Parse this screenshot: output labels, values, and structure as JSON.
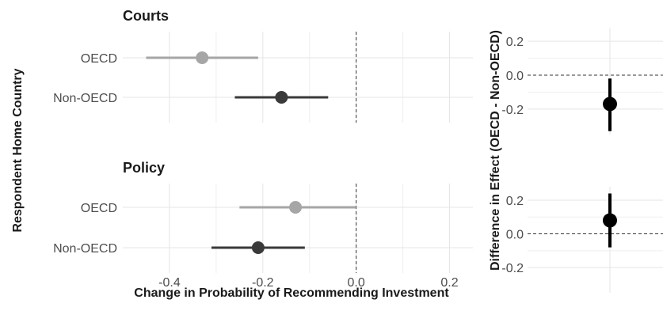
{
  "colors": {
    "oecd": "#a6a6a6",
    "non_oecd": "#3a3a3a",
    "difference": "#000000"
  },
  "chart_data": [
    {
      "type": "scatter",
      "subtype": "point-range",
      "title": "Courts",
      "ylabel": "Respondent Home Country",
      "xlabel": "Change in Probability of Recommending Investment",
      "categories": [
        "OECD",
        "Non-OECD"
      ],
      "series": [
        {
          "category": "OECD",
          "estimate": -0.33,
          "lower": -0.45,
          "upper": -0.21
        },
        {
          "category": "Non-OECD",
          "estimate": -0.16,
          "lower": -0.26,
          "upper": -0.06
        }
      ],
      "xticks": [
        "-0.4",
        "-0.2",
        "0.0",
        "0.2"
      ],
      "xlim": [
        -0.5,
        0.25
      ],
      "reference_line_x": 0,
      "grid": true
    },
    {
      "type": "scatter",
      "subtype": "point-range",
      "title": "Policy",
      "ylabel": "Respondent Home Country",
      "xlabel": "Change in Probability of Recommending Investment",
      "categories": [
        "OECD",
        "Non-OECD"
      ],
      "series": [
        {
          "category": "OECD",
          "estimate": -0.13,
          "lower": -0.25,
          "upper": 0.0
        },
        {
          "category": "Non-OECD",
          "estimate": -0.21,
          "lower": -0.31,
          "upper": -0.11
        }
      ],
      "xticks": [
        "-0.4",
        "-0.2",
        "0.0",
        "0.2"
      ],
      "xlim": [
        -0.5,
        0.25
      ],
      "reference_line_x": 0,
      "grid": true
    },
    {
      "type": "scatter",
      "subtype": "point-range",
      "title": "",
      "ylabel": "Difference in Effect (OECD - Non-OECD)",
      "estimate": -0.17,
      "lower": -0.33,
      "upper": -0.02,
      "yticks": [
        "0.2",
        "0.0",
        "-0.2"
      ],
      "ylim": [
        -0.35,
        0.28
      ],
      "reference_line_y": 0,
      "grid": true
    },
    {
      "type": "scatter",
      "subtype": "point-range",
      "title": "",
      "ylabel": "Difference in Effect (OECD - Non-OECD)",
      "estimate": 0.08,
      "lower": -0.08,
      "upper": 0.24,
      "yticks": [
        "0.2",
        "0.0",
        "-0.2"
      ],
      "ylim": [
        -0.35,
        0.28
      ],
      "reference_line_y": 0,
      "grid": true
    }
  ]
}
